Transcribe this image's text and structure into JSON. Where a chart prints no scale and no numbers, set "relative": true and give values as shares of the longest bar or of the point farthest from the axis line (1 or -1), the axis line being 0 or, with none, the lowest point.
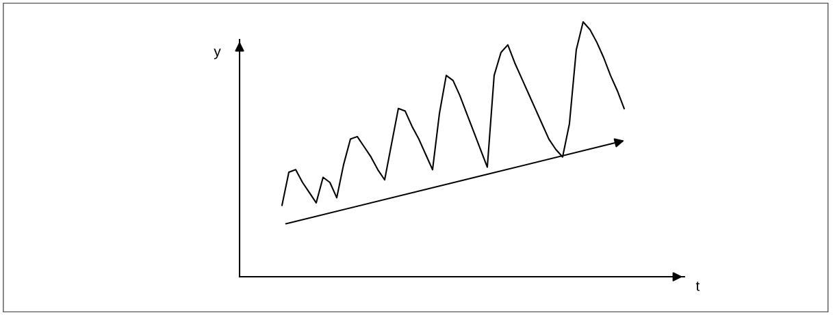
{
  "chart_data": {
    "type": "line",
    "relative": true,
    "xlabel": "t",
    "ylabel": "y",
    "categories": [
      null,
      null,
      null,
      null,
      null,
      null,
      null,
      null,
      null,
      null,
      null,
      null,
      null,
      null,
      null,
      null,
      null,
      null,
      null,
      null,
      null,
      null,
      null,
      null,
      null,
      null,
      null,
      null,
      null,
      null,
      null,
      null,
      null,
      null,
      null,
      null,
      null,
      null,
      null,
      null,
      null,
      null,
      null,
      null,
      null,
      null,
      null,
      null,
      null,
      null,
      null
    ],
    "series": [
      {
        "color": "#000000",
        "values": [
          0.28,
          0.41,
          0.42,
          0.37,
          0.33,
          0.29,
          0.39,
          0.37,
          0.31,
          0.44,
          0.54,
          0.55,
          0.51,
          0.47,
          0.42,
          0.38,
          0.52,
          0.66,
          0.65,
          0.59,
          0.54,
          0.48,
          0.42,
          0.64,
          0.79,
          0.77,
          0.71,
          0.64,
          0.57,
          0.5,
          0.43,
          0.79,
          0.88,
          0.91,
          0.84,
          0.78,
          0.72,
          0.66,
          0.6,
          0.54,
          0.5,
          0.47,
          0.6,
          0.89,
          1,
          0.97,
          0.92,
          0.86,
          0.79,
          0.73,
          0.66
        ]
      }
    ]
  }
}
